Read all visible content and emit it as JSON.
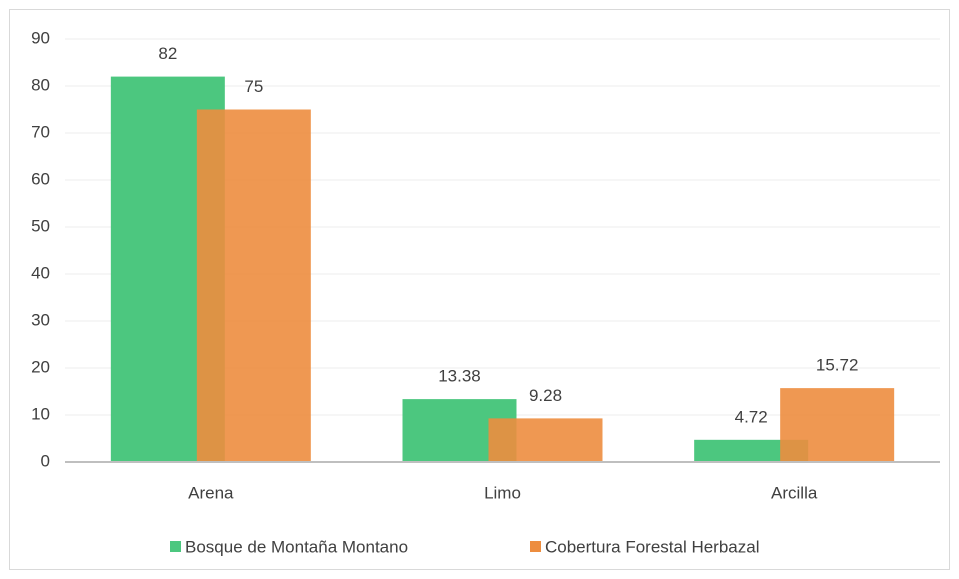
{
  "chart_data": {
    "type": "bar",
    "categories": [
      "Arena",
      "Limo",
      "Arcilla"
    ],
    "series": [
      {
        "name": "Bosque de Montaña Montano",
        "color": "#4cc77f",
        "values": [
          82,
          13.38,
          4.72
        ]
      },
      {
        "name": "Cobertura Forestal Herbazal",
        "color": "#ed8d3f",
        "values": [
          75,
          9.28,
          15.72
        ]
      }
    ],
    "ylim": [
      0,
      90
    ],
    "yticks": [
      0,
      10,
      20,
      30,
      40,
      50,
      60,
      70,
      80,
      90
    ],
    "grid": true,
    "legend": "bottom"
  }
}
